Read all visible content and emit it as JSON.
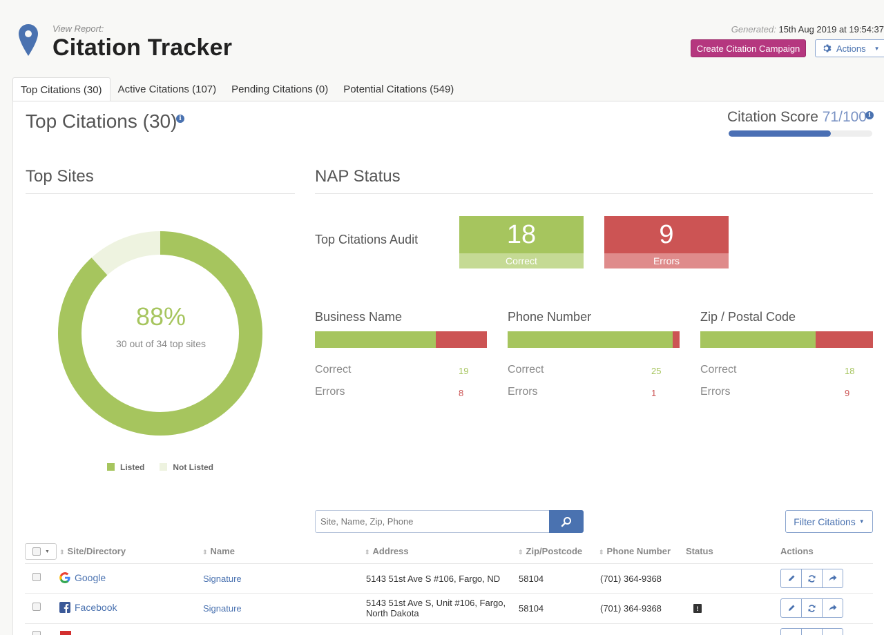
{
  "header": {
    "view_label": "View Report:",
    "title": "Citation Tracker",
    "generated_label": "Generated:",
    "generated_value": "15th Aug 2019 at 19:54:37",
    "create_button": "Create Citation Campaign",
    "actions_button": "Actions"
  },
  "tabs": [
    {
      "label": "Top Citations (30)",
      "active": true
    },
    {
      "label": "Active Citations (107)",
      "active": false
    },
    {
      "label": "Pending Citations (0)",
      "active": false
    },
    {
      "label": "Potential Citations (549)",
      "active": false
    }
  ],
  "page_heading": "Top Citations (30)",
  "citation_score": {
    "label": "Citation Score",
    "value": "71/100",
    "fraction": 0.71
  },
  "top_sites": {
    "title": "Top Sites",
    "percent": "88%",
    "subtitle": "30 out of 34 top sites",
    "listed": 30,
    "total": 34,
    "legend_listed": "Listed",
    "legend_not_listed": "Not Listed",
    "colors": {
      "listed": "#a6c55e",
      "not_listed": "#eef3e0"
    }
  },
  "nap": {
    "title": "NAP Status",
    "audit_label": "Top Citations Audit",
    "correct_count": "18",
    "correct_label": "Correct",
    "errors_count": "9",
    "errors_label": "Errors",
    "columns": [
      {
        "title": "Business Name",
        "correct_label": "Correct",
        "errors_label": "Errors",
        "correct": "19",
        "errors": "8"
      },
      {
        "title": "Phone Number",
        "correct_label": "Correct",
        "errors_label": "Errors",
        "correct": "25",
        "errors": "1"
      },
      {
        "title": "Zip / Postal Code",
        "correct_label": "Correct",
        "errors_label": "Errors",
        "correct": "18",
        "errors": "9"
      }
    ]
  },
  "search": {
    "placeholder": "Site, Name, Zip, Phone"
  },
  "filter_button": "Filter Citations",
  "table": {
    "headers": {
      "site": "Site/Directory",
      "name": "Name",
      "address": "Address",
      "zip": "Zip/Postcode",
      "phone": "Phone Number",
      "status": "Status",
      "actions": "Actions"
    },
    "rows": [
      {
        "site": "Google",
        "name": "Signature",
        "address_line1": "5143 51st Ave S #106, Fargo, ND",
        "address_line2": "",
        "zip": "58104",
        "phone": "(701) 364-9368"
      },
      {
        "site": "Facebook",
        "name": "Signature",
        "address_line1": "5143 51st Ave S, Unit #106, Fargo,",
        "address_line2": "North Dakota",
        "zip": "58104",
        "phone": "(701) 364-9368"
      }
    ]
  }
}
